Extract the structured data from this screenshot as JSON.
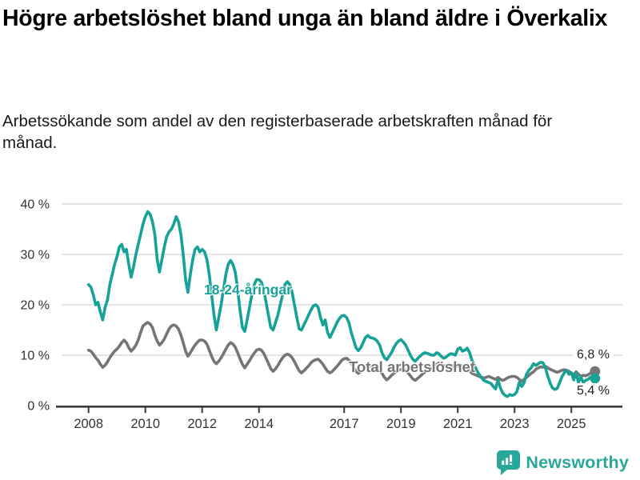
{
  "header": {
    "title": "Högre arbetslöshet bland unga än bland äldre i Överkalix",
    "subtitle": "Arbetssökande som andel av den registerbaserade arbetskraften månad för månad."
  },
  "colors": {
    "teal": "#16a296",
    "gray": "#757575",
    "grid": "#dcdcdc",
    "axis": "#3c3c3c",
    "tick_text": "#333333"
  },
  "footer": {
    "brand": "Newsworthy",
    "brand_color": "#2aa79c",
    "logo_icon": "bar-chart-speech-bubble"
  },
  "chart_data": {
    "type": "line",
    "unit": "%",
    "ylim": [
      0,
      40
    ],
    "grid": true,
    "x_start": "2008-01",
    "x_end": "2025-11",
    "frequency": "monthly",
    "yticks": [
      {
        "value": 40,
        "label": "40 %"
      },
      {
        "value": 30,
        "label": "30 %"
      },
      {
        "value": 20,
        "label": "20 %"
      },
      {
        "value": 10,
        "label": "10 %"
      },
      {
        "value": 0,
        "label": "0 %"
      }
    ],
    "xticks": [
      {
        "year": 2008,
        "label": "2008"
      },
      {
        "year": 2010,
        "label": "2010"
      },
      {
        "year": 2012,
        "label": "2012"
      },
      {
        "year": 2014,
        "label": "2014"
      },
      {
        "year": 2017,
        "label": "2017"
      },
      {
        "year": 2019,
        "label": "2019"
      },
      {
        "year": 2021,
        "label": "2021"
      },
      {
        "year": 2023,
        "label": "2023"
      },
      {
        "year": 2025,
        "label": "2025"
      }
    ],
    "series": [
      {
        "name": "18-24-åringar",
        "color": "#16a296",
        "end_value": 5.4,
        "end_label": "5,4 %",
        "values": [
          [
            24.0,
            23.5,
            22.0,
            20.0,
            20.5,
            18.5,
            17.0,
            19.5,
            21.0,
            24.0,
            26.0,
            28.0
          ],
          [
            29.5,
            31.5,
            32.0,
            30.5,
            31.0,
            28.0,
            25.5,
            27.5,
            30.0,
            32.0,
            34.0,
            36.0
          ],
          [
            37.5,
            38.5,
            38.0,
            36.5,
            34.0,
            29.0,
            26.5,
            29.0,
            31.5,
            33.5,
            34.5,
            35.0
          ],
          [
            36.0,
            37.5,
            36.5,
            34.0,
            30.0,
            25.0,
            22.5,
            26.0,
            29.0,
            31.0,
            31.5,
            30.5
          ],
          [
            31.0,
            30.5,
            29.0,
            26.0,
            22.0,
            18.0,
            15.0,
            17.5,
            20.0,
            23.0,
            26.0,
            28.0
          ],
          [
            28.8,
            28.0,
            26.5,
            23.0,
            19.0,
            15.5,
            14.7,
            17.0,
            19.5,
            22.0,
            24.0,
            25.0
          ],
          [
            25.0,
            24.5,
            23.0,
            20.5,
            18.0,
            15.5,
            15.0,
            16.5,
            18.0,
            20.0,
            22.0,
            24.0
          ],
          [
            24.6,
            24.0,
            22.5,
            20.0,
            17.5,
            15.2,
            15.0,
            16.0,
            17.0,
            18.0,
            19.0,
            19.8
          ],
          [
            20.0,
            19.5,
            17.5,
            16.0,
            17.0,
            14.5,
            13.5,
            14.5,
            15.5,
            16.5,
            17.3,
            17.8
          ],
          [
            17.9,
            17.5,
            16.5,
            14.5,
            13.0,
            11.5,
            10.9,
            11.5,
            12.5,
            13.5,
            13.9,
            13.5
          ],
          [
            13.4,
            13.2,
            12.8,
            12.0,
            10.5,
            9.5,
            9.1,
            9.8,
            10.5,
            11.5,
            12.3,
            12.8
          ],
          [
            13.1,
            12.6,
            12.0,
            11.0,
            10.0,
            9.2,
            8.8,
            9.3,
            9.8,
            10.2,
            10.5,
            10.4
          ],
          [
            10.2,
            10.0,
            10.0,
            10.5,
            10.3,
            9.8,
            9.4,
            9.6,
            10.0,
            10.3,
            10.2,
            10.0
          ],
          [
            11.2,
            11.5,
            10.8,
            11.0,
            11.4,
            10.5,
            9.0,
            8.0,
            7.0,
            6.2,
            5.6,
            5.0
          ],
          [
            4.8,
            4.6,
            4.4,
            3.8,
            3.3,
            5.1,
            3.5,
            2.5,
            2.0,
            1.8,
            2.2,
            2.0
          ],
          [
            2.2,
            2.8,
            4.6,
            3.8,
            4.5,
            6.2,
            7.0,
            7.5,
            8.3,
            8.0,
            8.3,
            8.6
          ],
          [
            8.5,
            7.5,
            5.9,
            4.5,
            3.5,
            3.2,
            3.4,
            4.5,
            5.7,
            6.5,
            7.0,
            6.2
          ],
          [
            6.5,
            5.1,
            6.5,
            4.6,
            5.7,
            4.6,
            5.0,
            5.2,
            5.6,
            5.5,
            5.4
          ]
        ]
      },
      {
        "name": "Total arbetslöshet",
        "color": "#757575",
        "end_value": 6.8,
        "end_label": "6,8 %",
        "values": [
          [
            11.0,
            10.8,
            10.2,
            9.5,
            9.0,
            8.2,
            7.6,
            8.0,
            8.7,
            9.5,
            10.2,
            10.8
          ],
          [
            11.2,
            11.8,
            12.5,
            13.0,
            12.5,
            11.5,
            10.8,
            11.3,
            12.0,
            13.0,
            14.5,
            15.8
          ],
          [
            16.2,
            16.5,
            16.2,
            15.5,
            14.0,
            12.8,
            12.0,
            12.5,
            13.2,
            14.2,
            15.2,
            15.8
          ],
          [
            16.0,
            15.8,
            15.2,
            14.0,
            12.5,
            10.8,
            9.8,
            10.5,
            11.3,
            12.0,
            12.6,
            13.0
          ],
          [
            13.0,
            12.8,
            12.2,
            11.0,
            9.8,
            8.8,
            8.3,
            8.8,
            9.5,
            10.3,
            11.2,
            12.0
          ],
          [
            12.5,
            12.2,
            11.6,
            10.5,
            9.3,
            8.2,
            7.5,
            8.2,
            8.9,
            9.7,
            10.4,
            11.0
          ],
          [
            11.2,
            11.0,
            10.4,
            9.4,
            8.4,
            7.3,
            6.8,
            7.3,
            8.0,
            8.8,
            9.5,
            10.0
          ],
          [
            10.2,
            10.0,
            9.5,
            8.7,
            7.8,
            6.9,
            6.5,
            6.9,
            7.4,
            7.9,
            8.5,
            8.9
          ],
          [
            9.1,
            9.2,
            8.8,
            8.2,
            7.5,
            6.8,
            6.5,
            6.8,
            7.3,
            7.8,
            8.4,
            9.0
          ],
          [
            9.3,
            9.4,
            9.0,
            8.4,
            7.6,
            6.8,
            6.4,
            6.7,
            7.0,
            7.4,
            7.7,
            7.9
          ],
          [
            8.0,
            8.1,
            7.8,
            7.2,
            6.4,
            5.6,
            5.1,
            5.5,
            6.0,
            6.4,
            6.8,
            7.0
          ],
          [
            7.2,
            7.3,
            7.0,
            6.5,
            5.9,
            5.3,
            5.0,
            5.4,
            5.8,
            6.2,
            6.6,
            6.9
          ],
          [
            7.2,
            7.4,
            7.6,
            8.2,
            8.4,
            8.2,
            7.8,
            8.0,
            8.2,
            8.0,
            7.8,
            7.6
          ],
          [
            7.8,
            8.0,
            7.8,
            7.5,
            7.2,
            6.8,
            6.4,
            6.2,
            6.0,
            5.8,
            5.6,
            5.5
          ],
          [
            5.6,
            5.8,
            5.6,
            5.4,
            5.2,
            5.6,
            5.2,
            5.0,
            5.2,
            5.5,
            5.7,
            5.8
          ],
          [
            5.8,
            5.6,
            5.2,
            4.8,
            5.2,
            5.6,
            6.0,
            6.4,
            6.7,
            7.2,
            7.5,
            7.7
          ],
          [
            7.6,
            7.8,
            7.5,
            7.2,
            7.0,
            6.8,
            6.6,
            6.8,
            7.0,
            7.1,
            7.0,
            6.8
          ],
          [
            6.5,
            6.0,
            6.7,
            6.2,
            5.8,
            6.0,
            5.9,
            6.1,
            6.4,
            6.6,
            6.8
          ]
        ]
      }
    ]
  }
}
